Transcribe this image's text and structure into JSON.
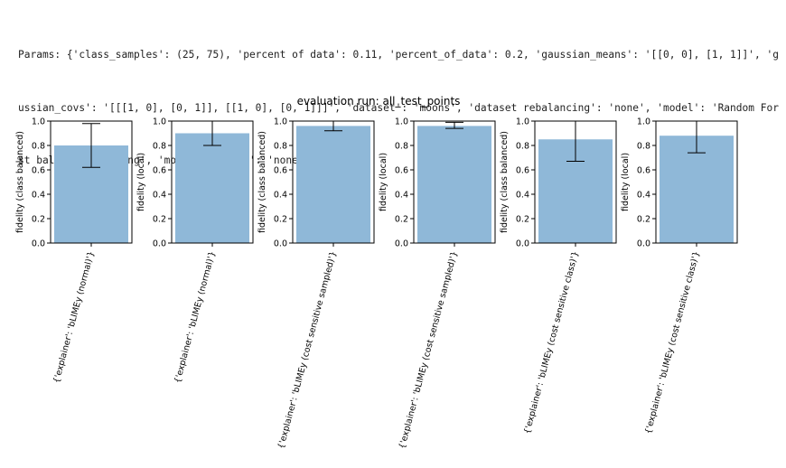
{
  "params_lines": [
    "Params: {'class_samples': (25, 75), 'percent of data': 0.11, 'percent_of_data': 0.2, 'gaussian_means': '[[0, 0], [1, 1]]', 'g",
    "ussian_covs': '[[[1, 0], [0, 1]], [[1, 0], [0, 1]]]', 'dataset': 'moons', 'dataset rebalancing': 'none', 'model': 'Random For",
    "st balanced training', 'model balancer': 'none'}"
  ],
  "colors": {
    "bar": "#8fb8d8",
    "axis": "#000000",
    "errorbar": "#000000"
  },
  "chart_data": {
    "type": "bar",
    "title": "evaluation run: all_test_points",
    "ylim": [
      0,
      1.0
    ],
    "yticks": [
      "0.0",
      "0.2",
      "0.4",
      "0.6",
      "0.8",
      "1.0"
    ],
    "grid": false,
    "panels": [
      {
        "ylabel": "fidelity (class balanced)",
        "category": "{'explainer': 'bLIMEy (normal)'}",
        "value": 0.8,
        "err_low": 0.62,
        "err_high": 0.98
      },
      {
        "ylabel": "fidelity (local)",
        "category": "{'explainer': 'bLIMEy (normal)'}",
        "value": 0.9,
        "err_low": 0.8,
        "err_high": 1.0
      },
      {
        "ylabel": "fidelity (class balanced)",
        "category": "{'explainer': 'bLIMEy (cost sensitive sampled)'}",
        "value": 0.96,
        "err_low": 0.92,
        "err_high": 1.0
      },
      {
        "ylabel": "fidelity (local)",
        "category": "{'explainer': 'bLIMEy (cost sensitive sampled)'}",
        "value": 0.96,
        "err_low": 0.94,
        "err_high": 0.99
      },
      {
        "ylabel": "fidelity (class balanced)",
        "category": "{'explainer': 'bLIMEy (cost sensitive class)'}",
        "value": 0.85,
        "err_low": 0.67,
        "err_high": 1.0
      },
      {
        "ylabel": "fidelity (local)",
        "category": "{'explainer': 'bLIMEy (cost sensitive class)'}",
        "value": 0.88,
        "err_low": 0.74,
        "err_high": 1.0
      }
    ]
  }
}
